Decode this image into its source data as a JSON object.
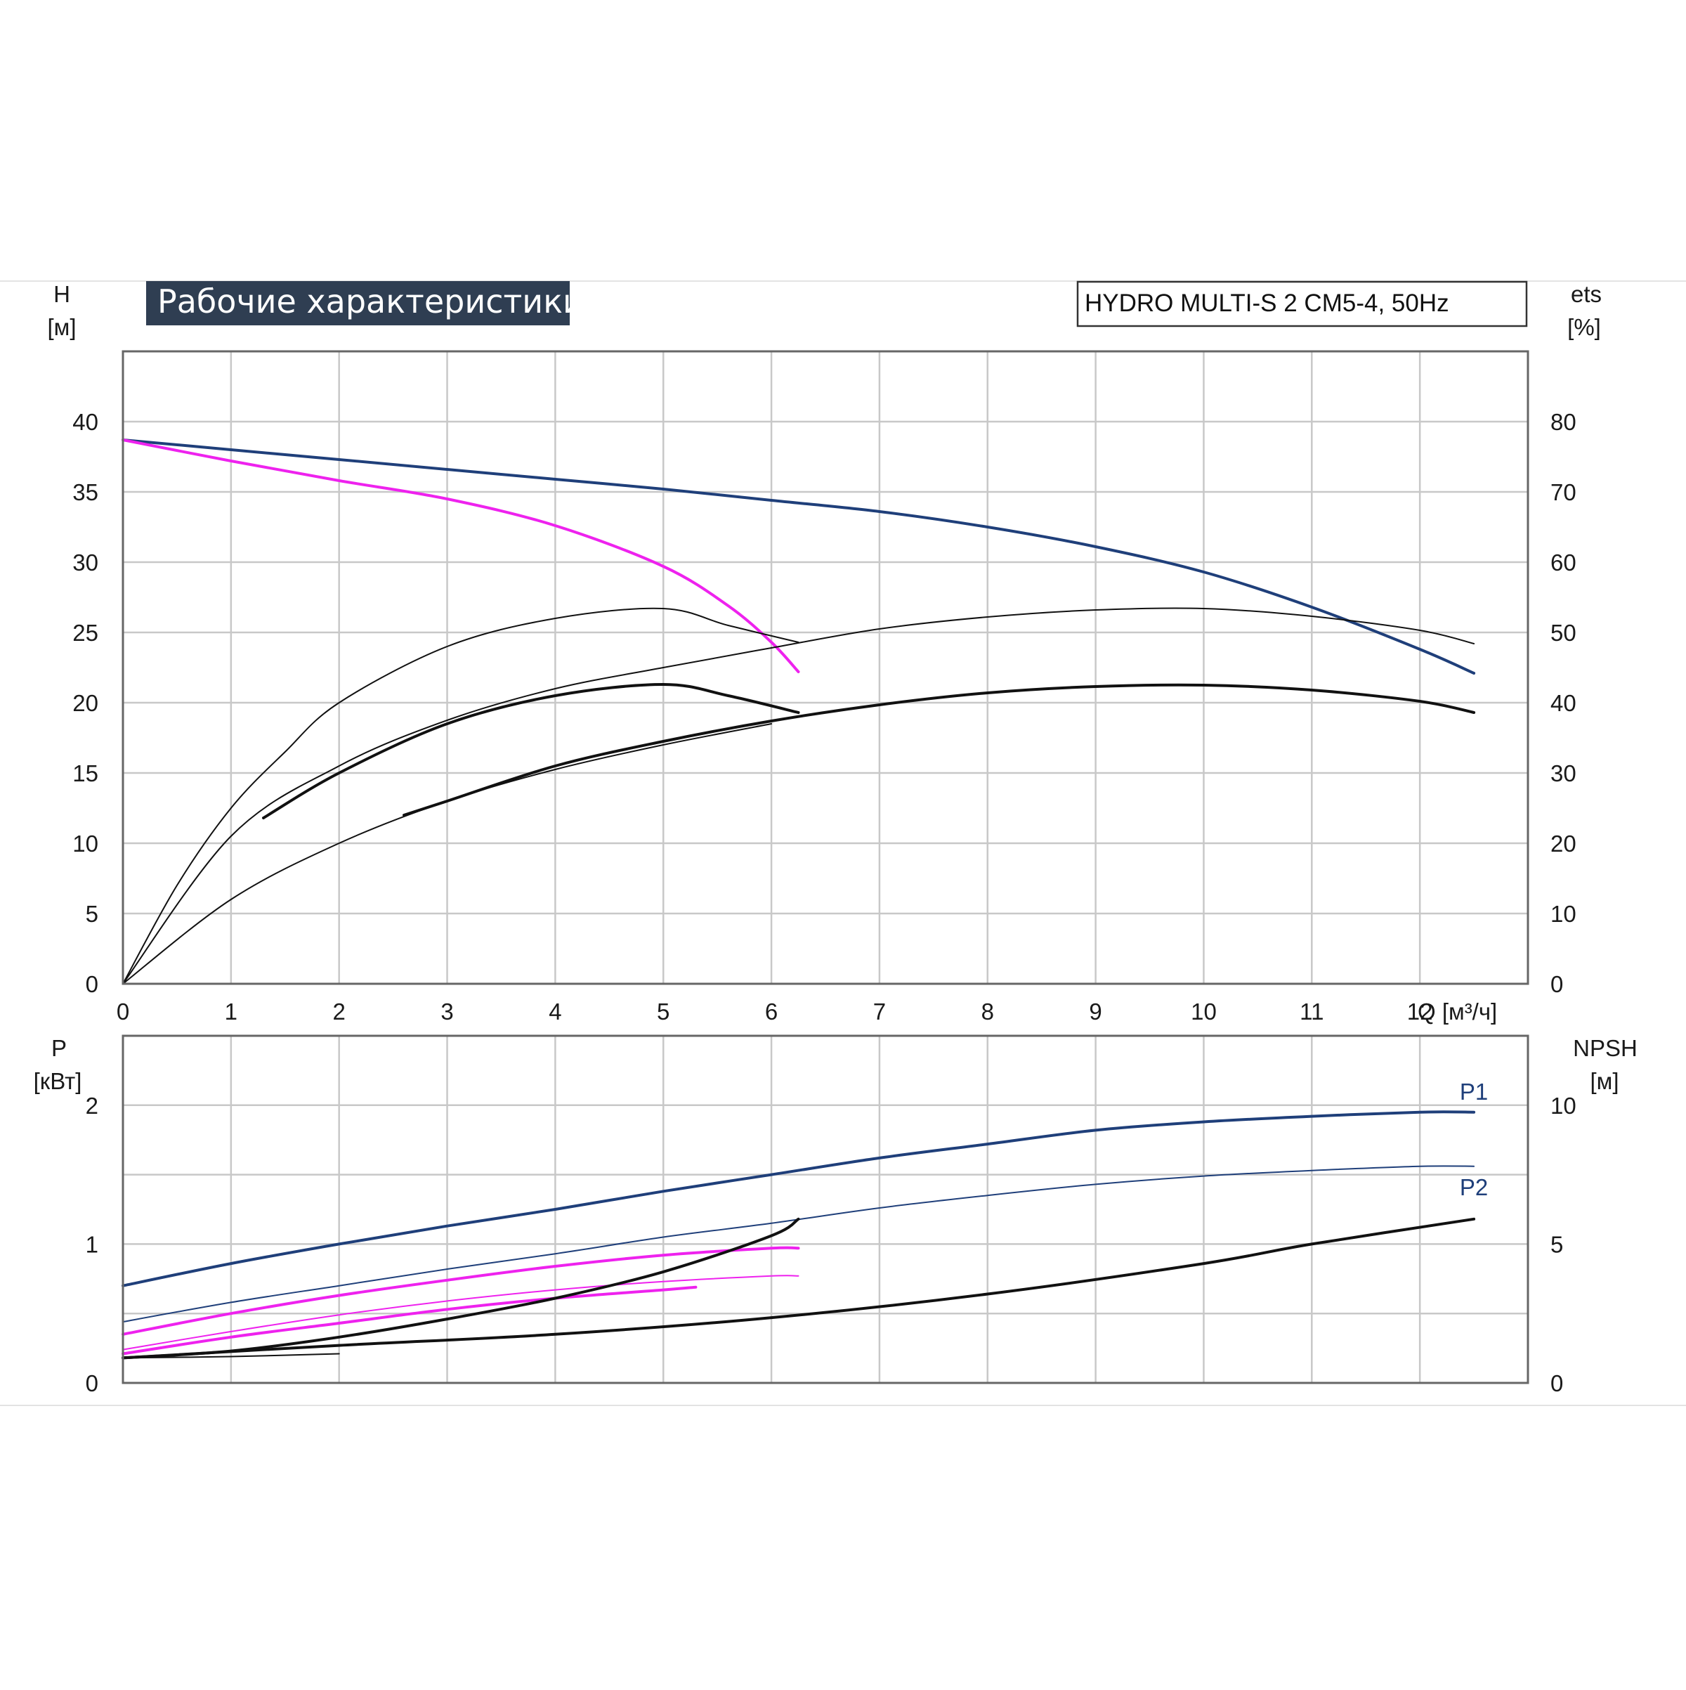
{
  "chart_title": "Рабочие характеристики",
  "model_label": "HYDRO MULTI-S 2 CM5-4, 50Hz",
  "colors": {
    "grid": "#c8c8c8",
    "title_bg": "#2f3e52",
    "blue": "#1f3f7a",
    "magenta": "#ee22ee",
    "black": "#111111"
  },
  "chart_data": [
    {
      "type": "line",
      "name_ref": "upper",
      "xlabel": "Q [м³/ч]",
      "ylabel": "H",
      "yunit": "[м]",
      "y2label": "ets",
      "y2unit": "[%]",
      "xlim": [
        0,
        13
      ],
      "ylim": [
        0,
        45
      ],
      "y2lim": [
        0,
        90
      ],
      "x_ticks": [
        "0",
        "1",
        "2",
        "3",
        "4",
        "5",
        "6",
        "7",
        "8",
        "9",
        "10",
        "11",
        "12"
      ],
      "y_ticks": [
        "0",
        "5",
        "10",
        "15",
        "20",
        "25",
        "30",
        "35",
        "40"
      ],
      "y2_ticks": [
        "0",
        "10",
        "20",
        "30",
        "40",
        "50",
        "60",
        "70",
        "80"
      ],
      "grid": true,
      "series": [
        {
          "axis": "left",
          "color": "blue",
          "width": 4,
          "points": [
            [
              0,
              38.7
            ],
            [
              1,
              38.0
            ],
            [
              2,
              37.3
            ],
            [
              3,
              36.6
            ],
            [
              4,
              35.9
            ],
            [
              5,
              35.2
            ],
            [
              6,
              34.4
            ],
            [
              7,
              33.6
            ],
            [
              8,
              32.5
            ],
            [
              9,
              31.1
            ],
            [
              10,
              29.3
            ],
            [
              11,
              26.8
            ],
            [
              12,
              23.8
            ],
            [
              12.5,
              22.1
            ]
          ]
        },
        {
          "axis": "left",
          "color": "magenta",
          "width": 4,
          "points": [
            [
              0,
              38.7
            ],
            [
              1,
              37.2
            ],
            [
              2,
              35.8
            ],
            [
              3,
              34.5
            ],
            [
              4,
              32.6
            ],
            [
              5,
              29.7
            ],
            [
              5.6,
              26.9
            ],
            [
              6,
              24.3
            ],
            [
              6.25,
              22.2
            ]
          ]
        },
        {
          "axis": "right",
          "color": "black",
          "width": 2,
          "points": [
            [
              0,
              0
            ],
            [
              0.5,
              14
            ],
            [
              1,
              25
            ],
            [
              1.5,
              33
            ],
            [
              2,
              40
            ],
            [
              3,
              48
            ],
            [
              4,
              52
            ],
            [
              5,
              53.4
            ],
            [
              5.6,
              51
            ],
            [
              6.25,
              48.6
            ]
          ]
        },
        {
          "axis": "right",
          "color": "black",
          "width": 4,
          "points": [
            [
              1.3,
              23.6
            ],
            [
              2,
              30
            ],
            [
              3,
              37
            ],
            [
              4,
              41
            ],
            [
              5,
              42.6
            ],
            [
              5.6,
              41
            ],
            [
              6.25,
              38.6
            ]
          ]
        },
        {
          "axis": "right",
          "color": "black",
          "width": 2,
          "points": [
            [
              0,
              0
            ],
            [
              1,
              21
            ],
            [
              2,
              31
            ],
            [
              3,
              37.5
            ],
            [
              4,
              42
            ],
            [
              5,
              45
            ],
            [
              6,
              47.8
            ],
            [
              7,
              50.5
            ],
            [
              8,
              52.2
            ],
            [
              9,
              53.2
            ],
            [
              10,
              53.4
            ],
            [
              11,
              52.3
            ],
            [
              12,
              50.3
            ],
            [
              12.5,
              48.4
            ]
          ]
        },
        {
          "axis": "right",
          "color": "black",
          "width": 4,
          "points": [
            [
              2.6,
              24
            ],
            [
              3,
              26
            ],
            [
              4,
              31
            ],
            [
              5,
              34.5
            ],
            [
              6,
              37.4
            ],
            [
              7,
              39.7
            ],
            [
              8,
              41.4
            ],
            [
              9,
              42.3
            ],
            [
              10,
              42.5
            ],
            [
              11,
              41.8
            ],
            [
              12,
              40.2
            ],
            [
              12.5,
              38.6
            ]
          ]
        },
        {
          "axis": "right",
          "color": "black",
          "width": 2,
          "points": [
            [
              0,
              0
            ],
            [
              1,
              12
            ],
            [
              2,
              20
            ],
            [
              3,
              26
            ],
            [
              4,
              30.5
            ],
            [
              5,
              34
            ],
            [
              6,
              37
            ]
          ]
        }
      ]
    },
    {
      "type": "line",
      "name_ref": "lower",
      "ylabel": "P",
      "yunit": "[кВт]",
      "y2label": "NPSH",
      "y2unit": "[м]",
      "xlim": [
        0,
        13
      ],
      "ylim": [
        0,
        2.5
      ],
      "y2lim": [
        0,
        12.5
      ],
      "y_ticks": [
        "0",
        "1",
        "2"
      ],
      "y2_ticks": [
        "0",
        "5",
        "10"
      ],
      "grid": true,
      "series": [
        {
          "name": "P1",
          "label_at": [
            12.5,
            2.04
          ],
          "axis": "left",
          "color": "blue",
          "width": 4,
          "points": [
            [
              0,
              0.7
            ],
            [
              1,
              0.86
            ],
            [
              2,
              1.0
            ],
            [
              3,
              1.13
            ],
            [
              4,
              1.25
            ],
            [
              5,
              1.38
            ],
            [
              6,
              1.5
            ],
            [
              7,
              1.62
            ],
            [
              8,
              1.72
            ],
            [
              9,
              1.82
            ],
            [
              10,
              1.88
            ],
            [
              11,
              1.92
            ],
            [
              12,
              1.95
            ],
            [
              12.5,
              1.95
            ]
          ]
        },
        {
          "name": "P2",
          "label_at": [
            12.5,
            1.35
          ],
          "axis": "left",
          "color": "blue",
          "width": 2,
          "points": [
            [
              0,
              0.44
            ],
            [
              1,
              0.58
            ],
            [
              2,
              0.7
            ],
            [
              3,
              0.82
            ],
            [
              4,
              0.93
            ],
            [
              5,
              1.05
            ],
            [
              6,
              1.15
            ],
            [
              7,
              1.26
            ],
            [
              8,
              1.35
            ],
            [
              9,
              1.43
            ],
            [
              10,
              1.49
            ],
            [
              11,
              1.53
            ],
            [
              12,
              1.56
            ],
            [
              12.5,
              1.56
            ]
          ]
        },
        {
          "axis": "left",
          "color": "magenta",
          "width": 4,
          "points": [
            [
              0,
              0.35
            ],
            [
              1,
              0.5
            ],
            [
              2,
              0.63
            ],
            [
              3,
              0.74
            ],
            [
              4,
              0.84
            ],
            [
              5,
              0.92
            ],
            [
              6,
              0.97
            ],
            [
              6.25,
              0.97
            ]
          ]
        },
        {
          "axis": "left",
          "color": "magenta",
          "width": 2,
          "points": [
            [
              0,
              0.24
            ],
            [
              1,
              0.37
            ],
            [
              2,
              0.49
            ],
            [
              3,
              0.59
            ],
            [
              4,
              0.67
            ],
            [
              5,
              0.73
            ],
            [
              6,
              0.77
            ],
            [
              6.25,
              0.77
            ]
          ]
        },
        {
          "axis": "left",
          "color": "magenta",
          "width": 4,
          "points": [
            [
              0,
              0.21
            ],
            [
              1,
              0.33
            ],
            [
              2,
              0.43
            ],
            [
              3,
              0.53
            ],
            [
              4,
              0.61
            ],
            [
              5,
              0.67
            ],
            [
              5.3,
              0.69
            ]
          ]
        },
        {
          "axis": "right",
          "color": "black",
          "width": 4,
          "points": [
            [
              0,
              0.9
            ],
            [
              1,
              1.15
            ],
            [
              2,
              1.65
            ],
            [
              3,
              2.3
            ],
            [
              4,
              3.05
            ],
            [
              5,
              4.0
            ],
            [
              6,
              5.3
            ],
            [
              6.25,
              5.9
            ]
          ]
        },
        {
          "axis": "right",
          "color": "black",
          "width": 4,
          "points": [
            [
              0,
              0.9
            ],
            [
              2,
              1.35
            ],
            [
              4,
              1.75
            ],
            [
              6,
              2.35
            ],
            [
              8,
              3.2
            ],
            [
              10,
              4.3
            ],
            [
              11,
              5.0
            ],
            [
              12.5,
              5.9
            ]
          ]
        },
        {
          "axis": "right",
          "color": "black",
          "width": 2,
          "points": [
            [
              0,
              0.9
            ],
            [
              1,
              0.95
            ],
            [
              2,
              1.05
            ]
          ]
        }
      ]
    }
  ]
}
